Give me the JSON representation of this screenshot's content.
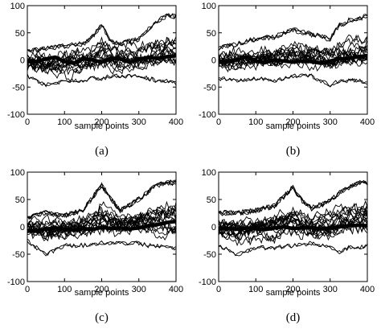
{
  "chart_data": [
    {
      "type": "line",
      "caption": "(a)",
      "xlabel": "sample points",
      "ylabel": "",
      "xlim": [
        0,
        400
      ],
      "ylim": [
        -100,
        100
      ],
      "xticks": [
        0,
        100,
        200,
        300,
        400
      ],
      "yticks": [
        -100,
        -50,
        0,
        50,
        100
      ],
      "grid": false,
      "series_color": "#000000",
      "thin_series_count": 20,
      "bold_series": {
        "x": [
          0,
          25,
          50,
          75,
          100,
          125,
          150,
          175,
          200,
          225,
          250,
          275,
          300,
          325,
          350,
          375,
          400
        ],
        "y": [
          -2,
          -3,
          2,
          5,
          -3,
          -6,
          2,
          0,
          -4,
          3,
          2,
          -4,
          2,
          4,
          3,
          6,
          8
        ]
      },
      "envelope": {
        "x": [
          0,
          50,
          100,
          150,
          175,
          200,
          225,
          250,
          300,
          325,
          350,
          375,
          400
        ],
        "upper": [
          20,
          25,
          30,
          35,
          50,
          75,
          40,
          35,
          45,
          65,
          85,
          95,
          95
        ],
        "lower": [
          -35,
          -55,
          -45,
          -45,
          -40,
          -40,
          -35,
          -35,
          -35,
          -40,
          -45,
          -45,
          -50
        ]
      }
    },
    {
      "type": "line",
      "caption": "(b)",
      "xlabel": "sample points",
      "ylabel": "",
      "xlim": [
        0,
        400
      ],
      "ylim": [
        -100,
        100
      ],
      "xticks": [
        0,
        100,
        200,
        300,
        400
      ],
      "yticks": [
        -100,
        -50,
        0,
        50,
        100
      ],
      "grid": false,
      "series_color": "#000000",
      "thin_series_count": 20,
      "bold_series": {
        "x": [
          0,
          25,
          50,
          75,
          100,
          125,
          150,
          175,
          200,
          225,
          250,
          275,
          300,
          325,
          350,
          375,
          400
        ],
        "y": [
          -3,
          -3,
          0,
          6,
          -2,
          -5,
          0,
          -2,
          -4,
          -2,
          -3,
          -6,
          -2,
          2,
          3,
          6,
          8
        ]
      },
      "envelope": {
        "x": [
          0,
          50,
          100,
          150,
          200,
          250,
          300,
          325,
          350,
          375,
          400
        ],
        "upper": [
          25,
          35,
          45,
          50,
          65,
          55,
          45,
          75,
          85,
          90,
          95
        ],
        "lower": [
          -40,
          -45,
          -40,
          -45,
          -35,
          -35,
          -55,
          -45,
          -45,
          -45,
          -50
        ]
      }
    },
    {
      "type": "line",
      "caption": "(c)",
      "xlabel": "sample points",
      "ylabel": "",
      "xlim": [
        0,
        400
      ],
      "ylim": [
        -100,
        100
      ],
      "xticks": [
        0,
        100,
        200,
        300,
        400
      ],
      "yticks": [
        -100,
        -50,
        0,
        50,
        100
      ],
      "grid": false,
      "series_color": "#000000",
      "thin_series_count": 22,
      "bold_series": {
        "x": [
          0,
          25,
          50,
          75,
          100,
          125,
          150,
          175,
          200,
          225,
          250,
          275,
          300,
          325,
          350,
          375,
          400
        ],
        "y": [
          -8,
          -7,
          -4,
          -2,
          -4,
          -6,
          -3,
          -5,
          -1,
          -3,
          -2,
          -4,
          -2,
          2,
          4,
          8,
          10
        ]
      },
      "envelope": {
        "x": [
          0,
          50,
          100,
          150,
          200,
          225,
          250,
          300,
          325,
          350,
          375,
          400
        ],
        "upper": [
          20,
          30,
          25,
          35,
          90,
          60,
          35,
          60,
          75,
          90,
          95,
          95
        ],
        "lower": [
          -30,
          -60,
          -40,
          -40,
          -35,
          -35,
          -35,
          -35,
          -40,
          -40,
          -45,
          -45
        ]
      }
    },
    {
      "type": "line",
      "caption": "(d)",
      "xlabel": "sample points",
      "ylabel": "",
      "xlim": [
        0,
        400
      ],
      "ylim": [
        -100,
        100
      ],
      "xticks": [
        0,
        100,
        200,
        300,
        400
      ],
      "yticks": [
        -100,
        -50,
        0,
        50,
        100
      ],
      "grid": false,
      "series_color": "#000000",
      "thin_series_count": 22,
      "bold_series": {
        "x": [
          0,
          25,
          50,
          75,
          100,
          125,
          150,
          175,
          200,
          225,
          250,
          275,
          300,
          325,
          350,
          375,
          400
        ],
        "y": [
          -4,
          -3,
          -4,
          -2,
          -3,
          -5,
          -2,
          0,
          -3,
          -2,
          -1,
          -4,
          -2,
          0,
          2,
          3,
          2
        ]
      },
      "envelope": {
        "x": [
          0,
          50,
          100,
          150,
          200,
          225,
          250,
          300,
          325,
          350,
          375,
          400
        ],
        "upper": [
          30,
          30,
          35,
          45,
          85,
          55,
          40,
          55,
          75,
          85,
          95,
          95
        ],
        "lower": [
          -40,
          -60,
          -45,
          -45,
          -40,
          -40,
          -35,
          -45,
          -55,
          -45,
          -45,
          -40
        ]
      }
    }
  ]
}
